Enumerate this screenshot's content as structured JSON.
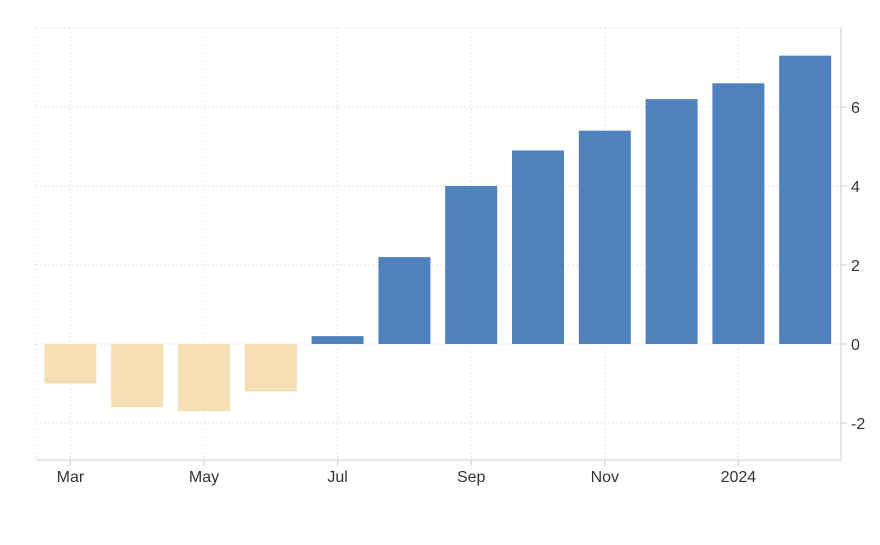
{
  "chart_data": {
    "type": "bar",
    "title": "",
    "xlabel": "",
    "ylabel": "",
    "months": [
      "2023-03",
      "2023-04",
      "2023-05",
      "2023-06",
      "2023-07",
      "2023-08",
      "2023-09",
      "2023-10",
      "2023-11",
      "2023-12",
      "2024-01",
      "2024-02"
    ],
    "values": [
      -1.0,
      -1.6,
      -1.7,
      -1.2,
      0.2,
      2.2,
      4.0,
      4.9,
      5.4,
      6.2,
      6.6,
      7.3
    ],
    "x_tick_labels": [
      "Mar",
      "May",
      "Jul",
      "Sep",
      "Nov",
      "2024"
    ],
    "y_ticks": [
      -2,
      0,
      2,
      4,
      6
    ],
    "ylim": [
      -3,
      8
    ],
    "grid": true,
    "y_axis_position": "right",
    "colors": {
      "positive": "#4f81bd",
      "negative": "#f5deb3"
    }
  }
}
